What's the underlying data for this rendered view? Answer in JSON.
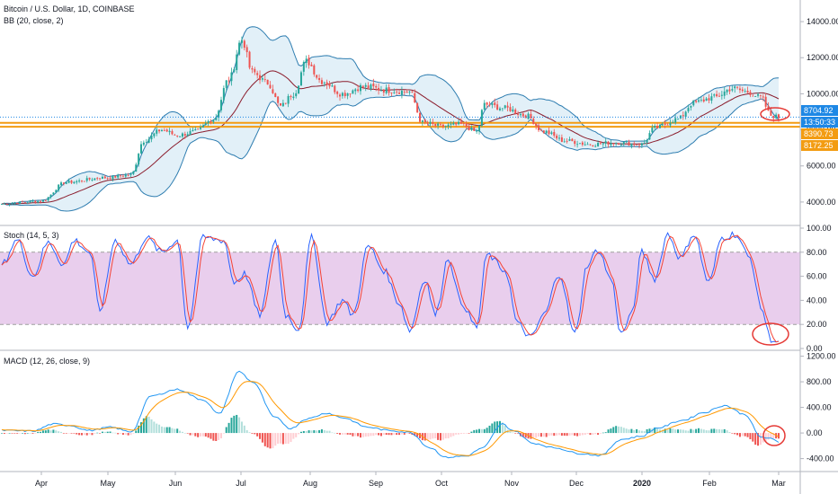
{
  "header": {
    "title": "Bitcoin / U.S. Dollar, 1D, COINBASE",
    "bb_label": "BB (20, close, 2)",
    "stoch_label": "Stoch (14, 5, 3)",
    "macd_label": "MACD (12, 26, close, 9)"
  },
  "price_tags": {
    "last": "8704.92",
    "countdown": "13:50:33",
    "level_1": "8390.73",
    "level_2": "8172.25"
  },
  "colors": {
    "candle_up": "#26a69a",
    "candle_down": "#ef5350",
    "bb_mid": "#8b1c2c",
    "bb_band": "#2e7db0",
    "bb_fill": "#cfe6f3",
    "hline": "#f39c12",
    "stoch_k": "#2962ff",
    "stoch_d": "#f44336",
    "stoch_band": "#e1bee7",
    "macd_line": "#2196f3",
    "signal_line": "#ff9800",
    "annotation": "#e53935"
  },
  "chart_data": [
    {
      "type": "candlestick",
      "title": "Bitcoin / U.S. Dollar, 1D, COINBASE",
      "overlay": "BB (20, close, 2)",
      "x_ticks": [
        "Apr",
        "May",
        "Jun",
        "Jul",
        "Aug",
        "Sep",
        "Oct",
        "Nov",
        "Dec",
        "2020",
        "Feb",
        "Mar"
      ],
      "y_ticks": [
        "4000.00",
        "6000.00",
        "8000.00",
        "10000.00",
        "12000.00",
        "14000.00"
      ],
      "ylim": [
        3000,
        14800
      ],
      "horizontal_levels": [
        8390.73,
        8172.25
      ],
      "last_price": 8704.92,
      "close_anchors": [
        [
          0,
          3900
        ],
        [
          15,
          4050
        ],
        [
          25,
          5100
        ],
        [
          40,
          5350
        ],
        [
          50,
          5500
        ],
        [
          55,
          7400
        ],
        [
          62,
          8000
        ],
        [
          68,
          7700
        ],
        [
          75,
          7900
        ],
        [
          82,
          8600
        ],
        [
          88,
          10800
        ],
        [
          93,
          13000
        ],
        [
          97,
          11200
        ],
        [
          103,
          10600
        ],
        [
          108,
          9300
        ],
        [
          113,
          10000
        ],
        [
          118,
          11800
        ],
        [
          124,
          10700
        ],
        [
          132,
          10000
        ],
        [
          140,
          10400
        ],
        [
          150,
          10200
        ],
        [
          158,
          10100
        ],
        [
          163,
          8400
        ],
        [
          170,
          8200
        ],
        [
          178,
          8300
        ],
        [
          184,
          7900
        ],
        [
          187,
          9400
        ],
        [
          195,
          9200
        ],
        [
          203,
          8800
        ],
        [
          210,
          7900
        ],
        [
          218,
          7400
        ],
        [
          228,
          7200
        ],
        [
          238,
          7300
        ],
        [
          248,
          7200
        ],
        [
          253,
          8100
        ],
        [
          262,
          8600
        ],
        [
          268,
          9500
        ],
        [
          276,
          9800
        ],
        [
          283,
          10300
        ],
        [
          289,
          10100
        ],
        [
          294,
          9800
        ],
        [
          298,
          8800
        ],
        [
          301,
          8700
        ]
      ]
    },
    {
      "type": "line",
      "title": "Stoch (14, 5, 3)",
      "y_ticks": [
        "0.00",
        "20.00",
        "40.00",
        "60.00",
        "80.00",
        "100.00"
      ],
      "ylim": [
        0,
        100
      ],
      "bands": [
        20,
        80
      ],
      "k_anchors": [
        [
          0,
          70
        ],
        [
          6,
          90
        ],
        [
          12,
          60
        ],
        [
          18,
          88
        ],
        [
          24,
          70
        ],
        [
          28,
          90
        ],
        [
          34,
          80
        ],
        [
          38,
          32
        ],
        [
          44,
          90
        ],
        [
          50,
          70
        ],
        [
          56,
          92
        ],
        [
          62,
          80
        ],
        [
          68,
          90
        ],
        [
          72,
          18
        ],
        [
          78,
          92
        ],
        [
          86,
          90
        ],
        [
          90,
          55
        ],
        [
          94,
          62
        ],
        [
          100,
          28
        ],
        [
          106,
          90
        ],
        [
          110,
          28
        ],
        [
          115,
          16
        ],
        [
          120,
          92
        ],
        [
          126,
          22
        ],
        [
          132,
          40
        ],
        [
          136,
          28
        ],
        [
          142,
          85
        ],
        [
          148,
          65
        ],
        [
          154,
          38
        ],
        [
          158,
          15
        ],
        [
          164,
          58
        ],
        [
          168,
          28
        ],
        [
          173,
          75
        ],
        [
          178,
          38
        ],
        [
          184,
          18
        ],
        [
          188,
          78
        ],
        [
          195,
          65
        ],
        [
          200,
          20
        ],
        [
          205,
          9
        ],
        [
          210,
          28
        ],
        [
          216,
          62
        ],
        [
          222,
          12
        ],
        [
          227,
          70
        ],
        [
          231,
          82
        ],
        [
          236,
          58
        ],
        [
          240,
          12
        ],
        [
          244,
          28
        ],
        [
          248,
          80
        ],
        [
          253,
          58
        ],
        [
          258,
          95
        ],
        [
          263,
          75
        ],
        [
          268,
          95
        ],
        [
          274,
          55
        ],
        [
          279,
          92
        ],
        [
          284,
          95
        ],
        [
          290,
          75
        ],
        [
          294,
          35
        ],
        [
          298,
          8
        ],
        [
          301,
          5
        ]
      ]
    },
    {
      "type": "line",
      "title": "MACD (12, 26, close, 9)",
      "y_ticks": [
        "-400.00",
        "0.00",
        "400.00",
        "800.00",
        "1200.00"
      ],
      "ylim": [
        -560,
        1250
      ],
      "macd_anchors": [
        [
          0,
          40
        ],
        [
          12,
          30
        ],
        [
          20,
          140
        ],
        [
          26,
          120
        ],
        [
          34,
          40
        ],
        [
          42,
          90
        ],
        [
          50,
          20
        ],
        [
          58,
          580
        ],
        [
          68,
          680
        ],
        [
          78,
          520
        ],
        [
          84,
          300
        ],
        [
          92,
          960
        ],
        [
          97,
          800
        ],
        [
          106,
          240
        ],
        [
          112,
          70
        ],
        [
          118,
          220
        ],
        [
          126,
          310
        ],
        [
          132,
          240
        ],
        [
          142,
          90
        ],
        [
          150,
          40
        ],
        [
          158,
          10
        ],
        [
          166,
          -230
        ],
        [
          172,
          -380
        ],
        [
          180,
          -360
        ],
        [
          186,
          -240
        ],
        [
          194,
          140
        ],
        [
          198,
          40
        ],
        [
          206,
          -160
        ],
        [
          214,
          -230
        ],
        [
          224,
          -320
        ],
        [
          232,
          -350
        ],
        [
          240,
          -100
        ],
        [
          248,
          -50
        ],
        [
          254,
          80
        ],
        [
          264,
          200
        ],
        [
          272,
          320
        ],
        [
          280,
          430
        ],
        [
          288,
          290
        ],
        [
          294,
          -60
        ],
        [
          298,
          -90
        ],
        [
          301,
          -140
        ]
      ]
    }
  ]
}
